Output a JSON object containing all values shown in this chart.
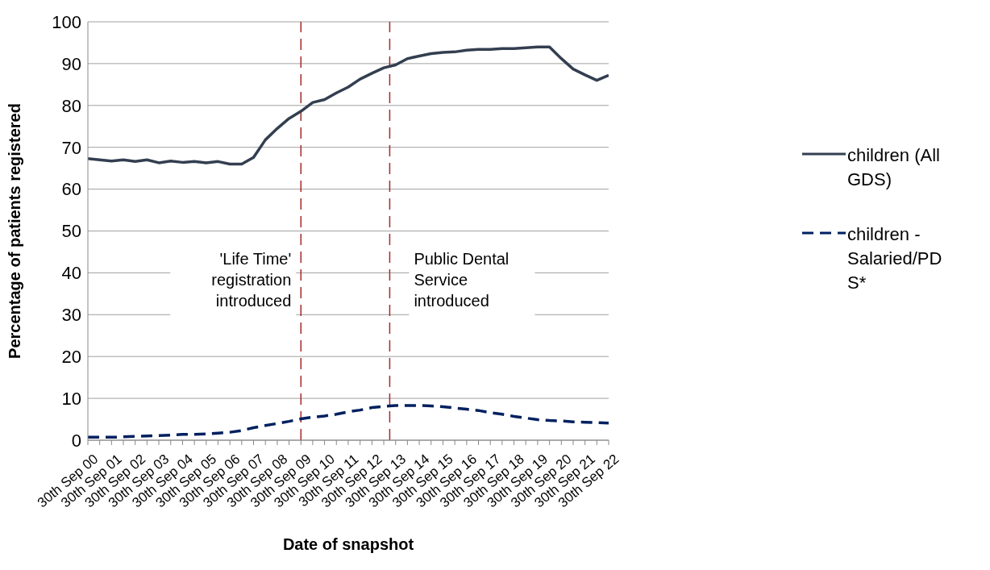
{
  "chart_data": {
    "type": "line",
    "xlabel": "Date of snapshot",
    "ylabel": "Percentage of patients registered",
    "x": [
      "2000-09-30",
      "2001-03-31",
      "2001-09-30",
      "2002-03-31",
      "2002-09-30",
      "2003-03-31",
      "2003-09-30",
      "2004-03-31",
      "2004-09-30",
      "2005-03-31",
      "2005-09-30",
      "2006-03-31",
      "2006-09-30",
      "2007-03-31",
      "2007-09-30",
      "2008-03-31",
      "2008-09-30",
      "2009-03-31",
      "2009-09-30",
      "2010-03-31",
      "2010-09-30",
      "2011-03-31",
      "2011-09-30",
      "2012-03-31",
      "2012-09-30",
      "2013-03-31",
      "2013-09-30",
      "2014-03-31",
      "2014-09-30",
      "2015-03-31",
      "2015-09-30",
      "2016-03-31",
      "2016-09-30",
      "2017-03-31",
      "2017-09-30",
      "2018-03-31",
      "2018-09-30",
      "2019-03-31",
      "2019-09-30",
      "2020-03-31",
      "2020-09-30",
      "2021-03-31",
      "2021-09-30",
      "2022-03-31",
      "2022-09-30"
    ],
    "series": [
      {
        "name": "children (All GDS)",
        "color": "#333f50",
        "line_style": "solid",
        "values": [
          67.3,
          67.0,
          66.7,
          67.0,
          66.6,
          67.0,
          66.3,
          66.7,
          66.4,
          66.6,
          66.3,
          66.6,
          66.0,
          66.0,
          67.6,
          71.8,
          74.5,
          76.9,
          78.6,
          80.7,
          81.4,
          83.0,
          84.4,
          86.3,
          87.7,
          89.0,
          89.7,
          91.2,
          91.8,
          92.4,
          92.7,
          92.8,
          93.2,
          93.4,
          93.4,
          93.6,
          93.6,
          93.8,
          94.0,
          94.0,
          91.2,
          88.7,
          87.3,
          86.0,
          87.2
        ]
      },
      {
        "name": "children - Salaried/PDS*",
        "color": "#002060",
        "line_style": "dashed",
        "values": [
          0.7,
          0.7,
          0.7,
          0.8,
          0.9,
          1.0,
          1.1,
          1.2,
          1.4,
          1.4,
          1.5,
          1.7,
          1.9,
          2.3,
          3.0,
          3.5,
          4.0,
          4.5,
          5.1,
          5.5,
          5.8,
          6.2,
          6.8,
          7.2,
          7.8,
          8.1,
          8.3,
          8.3,
          8.3,
          8.2,
          8.0,
          7.7,
          7.4,
          7.1,
          6.6,
          6.2,
          5.7,
          5.3,
          4.9,
          4.7,
          4.6,
          4.4,
          4.3,
          4.2,
          4.1
        ]
      }
    ],
    "xlim": [
      "2000-09-30",
      "2022-09-30"
    ],
    "xticks": [
      {
        "value": "2000-09-30",
        "label": "30th Sep 00"
      },
      {
        "value": "2001-03-31",
        "label": null
      },
      {
        "value": "2001-09-30",
        "label": "30th Sep 01"
      },
      {
        "value": "2002-03-31",
        "label": null
      },
      {
        "value": "2002-09-30",
        "label": "30th Sep 02"
      },
      {
        "value": "2003-03-31",
        "label": null
      },
      {
        "value": "2003-09-30",
        "label": "30th Sep 03"
      },
      {
        "value": "2004-03-31",
        "label": null
      },
      {
        "value": "2004-09-30",
        "label": "30th Sep 04"
      },
      {
        "value": "2005-03-31",
        "label": null
      },
      {
        "value": "2005-09-30",
        "label": "30th Sep 05"
      },
      {
        "value": "2006-03-31",
        "label": null
      },
      {
        "value": "2006-09-30",
        "label": "30th Sep 06"
      },
      {
        "value": "2007-03-31",
        "label": null
      },
      {
        "value": "2007-09-30",
        "label": "30th Sep 07"
      },
      {
        "value": "2008-03-31",
        "label": null
      },
      {
        "value": "2008-09-30",
        "label": "30th Sep 08"
      },
      {
        "value": "2009-03-31",
        "label": null
      },
      {
        "value": "2009-09-30",
        "label": "30th Sep 09"
      },
      {
        "value": "2010-03-31",
        "label": null
      },
      {
        "value": "2010-09-30",
        "label": "30th Sep 10"
      },
      {
        "value": "2011-03-31",
        "label": null
      },
      {
        "value": "2011-09-30",
        "label": "30th Sep 11"
      },
      {
        "value": "2012-03-31",
        "label": null
      },
      {
        "value": "2012-09-30",
        "label": "30th Sep 12"
      },
      {
        "value": "2013-03-31",
        "label": null
      },
      {
        "value": "2013-09-30",
        "label": "30th Sep 13"
      },
      {
        "value": "2014-03-31",
        "label": null
      },
      {
        "value": "2014-09-30",
        "label": "30th Sep 14"
      },
      {
        "value": "2015-03-31",
        "label": null
      },
      {
        "value": "2015-09-30",
        "label": "30th Sep 15"
      },
      {
        "value": "2016-03-31",
        "label": null
      },
      {
        "value": "2016-09-30",
        "label": "30th Sep 16"
      },
      {
        "value": "2017-03-31",
        "label": null
      },
      {
        "value": "2017-09-30",
        "label": "30th Sep 17"
      },
      {
        "value": "2018-03-31",
        "label": null
      },
      {
        "value": "2018-09-30",
        "label": "30th Sep 18"
      },
      {
        "value": "2019-03-31",
        "label": null
      },
      {
        "value": "2019-09-30",
        "label": "30th Sep 19"
      },
      {
        "value": "2020-03-31",
        "label": null
      },
      {
        "value": "2020-09-30",
        "label": "30th Sep 20"
      },
      {
        "value": "2021-03-31",
        "label": null
      },
      {
        "value": "2021-09-30",
        "label": "30th Sep 21"
      },
      {
        "value": "2022-03-31",
        "label": null
      },
      {
        "value": "2022-09-30",
        "label": "30th Sep 22"
      }
    ],
    "ylim": [
      0,
      100
    ],
    "yticks": [
      0,
      10,
      20,
      30,
      40,
      50,
      60,
      70,
      80,
      90,
      100
    ],
    "grid": "y",
    "legend": "right",
    "ref_lines": [
      {
        "axis": "x",
        "value": "2009-09-30",
        "label": "'Life Time' registration introduced",
        "color": "#a52a2a",
        "line_style": "dashed"
      },
      {
        "axis": "x",
        "value": "2013-07",
        "label": "Public Dental Service introduced",
        "color": "#a52a2a",
        "line_style": "dashed"
      }
    ]
  }
}
